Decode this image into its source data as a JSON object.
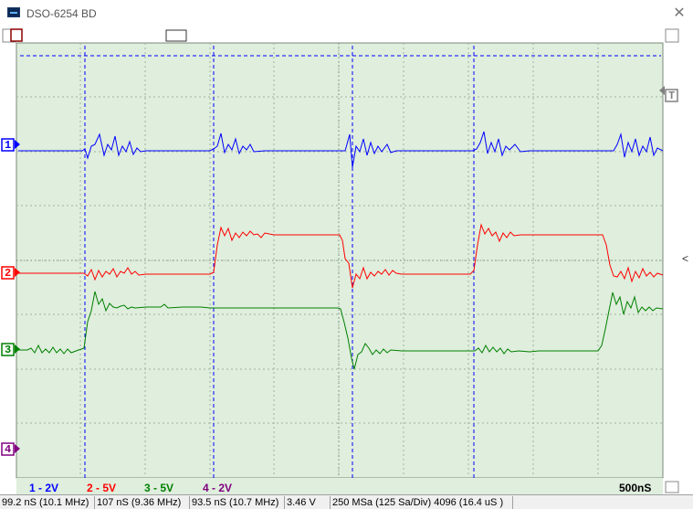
{
  "window": {
    "title": "DSO-6254 BD",
    "close_glyph": "✕"
  },
  "channels": [
    {
      "marker": "1",
      "color": "#0000ff"
    },
    {
      "marker": "2",
      "color": "#ff0000"
    },
    {
      "marker": "3",
      "color": "#008000"
    },
    {
      "marker": "4",
      "color": "#800080"
    }
  ],
  "trigger": {
    "marker": "T",
    "color": "#808080"
  },
  "footer": {
    "ch1_scale": "1 - 2V",
    "ch2_scale": "2 - 5V",
    "ch3_scale": "3 - 5V",
    "ch4_scale": "4 - 2V",
    "timebase": "500nS"
  },
  "status": {
    "cell1": "99.2 nS (10.1 MHz)",
    "cell2": "107 nS (9.36 MHz)",
    "cell3": "93.5 nS (10.7 MHz)",
    "cell4": "3.46 V",
    "cell5": "250 MSa (125 Sa/Div) 4096 (16.4 uS )"
  },
  "side_arrow": "<",
  "colors": {
    "screen_bg": "#dfeedd",
    "grid": "#a0b3a0",
    "cursor": "#0000ff"
  }
}
